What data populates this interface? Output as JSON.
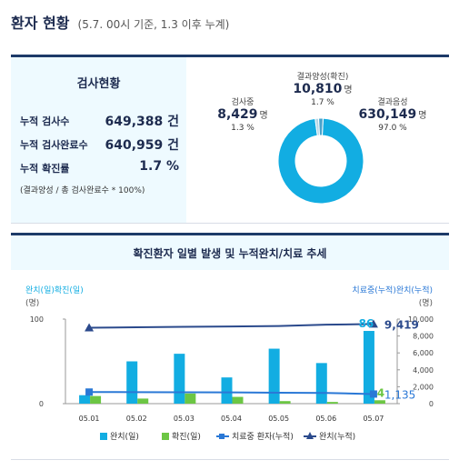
{
  "header": {
    "title": "환자 현황",
    "subtitle": "(5.7. 00시 기준, 1.3 이후 누계)"
  },
  "test_status": {
    "title": "검사현황",
    "rows": [
      {
        "label": "누적 검사수",
        "value": "649,388 건"
      },
      {
        "label": "누적 검사완료수",
        "value": "640,959 건"
      },
      {
        "label": "누적 확진률",
        "value": "1.7 %"
      }
    ],
    "note": "(결과양성 / 총 검사완료수 * 100%)"
  },
  "donut": {
    "positive": {
      "name": "결과양성(확진)",
      "value": "10,810",
      "unit": "명",
      "pct": "1.7 %"
    },
    "testing": {
      "name": "검사중",
      "value": "8,429",
      "unit": "명",
      "pct": "1.3 %"
    },
    "negative": {
      "name": "결과음성",
      "value": "630,149",
      "unit": "명",
      "pct": "97.0 %"
    },
    "colors": {
      "negative": "#12ade2",
      "testing": "#b4d6e6",
      "positive": "#4aa3cc"
    }
  },
  "chart_panel": {
    "title": "확진환자 일별 발생 및 누적완치/치료 추세"
  },
  "chart_data": {
    "type": "bar",
    "left_axis_label": "완치(일)확진(일)",
    "left_axis_unit": "(명)",
    "right_axis_label": "치료중(누적)완치(누적)",
    "right_axis_unit": "(명)",
    "categories": [
      "05.01",
      "05.02",
      "05.03",
      "05.04",
      "05.05",
      "05.06",
      "05.07"
    ],
    "left_ylim": [
      0,
      100
    ],
    "left_ticks": [
      "0",
      "100"
    ],
    "right_ylim": [
      0,
      10000
    ],
    "right_ticks": [
      "0",
      "2,000",
      "4,000",
      "6,000",
      "8,000",
      "10,000"
    ],
    "series": [
      {
        "name": "완치(일)",
        "type": "bar",
        "axis": "left",
        "color": "#12ade2",
        "values": [
          10,
          50,
          59,
          31,
          65,
          48,
          86
        ]
      },
      {
        "name": "확진(일)",
        "type": "bar",
        "axis": "left",
        "color": "#6cc644",
        "values": [
          9,
          6,
          12,
          8,
          3,
          2,
          4
        ]
      },
      {
        "name": "치료중 환자(누적)",
        "type": "line",
        "axis": "right",
        "color": "#2a78d6",
        "values": [
          1370,
          1360,
          1350,
          1330,
          1290,
          1260,
          1135
        ]
      },
      {
        "name": "완치(누적)",
        "type": "line",
        "axis": "right",
        "color": "#2b4a8c",
        "values": [
          8980,
          9030,
          9090,
          9120,
          9185,
          9335,
          9419
        ]
      }
    ],
    "data_labels": {
      "bar_daily_recovered_last": "86",
      "bar_daily_confirmed_last": "4",
      "treating_last": "1,135",
      "recovered_cum_last": "9,419"
    },
    "legend_position": "bottom"
  }
}
